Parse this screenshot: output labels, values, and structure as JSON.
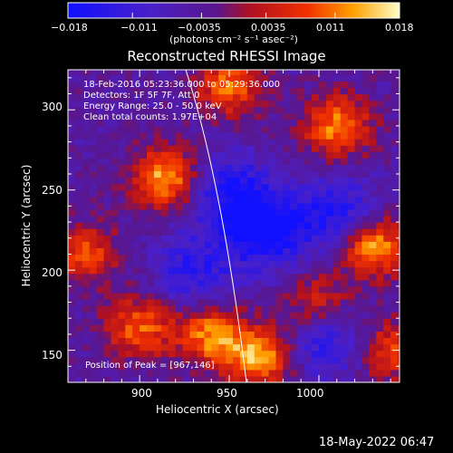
{
  "colorbar": {
    "ticks": [
      "−0.018",
      "−0.011",
      "−0.0035",
      "0.0035",
      "0.011",
      "0.018"
    ],
    "units_label": "(photons cm⁻² s⁻¹ asec⁻²)"
  },
  "plot": {
    "title": "Reconstructed RHESSI Image",
    "xlabel": "Heliocentric X (arcsec)",
    "ylabel": "Heliocentric Y (arcsec)",
    "xticks": [
      "900",
      "950",
      "1000"
    ],
    "yticks": [
      "300",
      "250",
      "200",
      "150"
    ],
    "info_lines": [
      "18-Feb-2016 05:23:36.000 to 05:29:36.000",
      "Detectors: 1F 5F 7F, Att 0",
      "Energy Range: 25.0 - 50.0 keV",
      "Clean     total counts: 1.97E+04"
    ],
    "peak_text": "Position of Peak = [967,146]"
  },
  "footer": {
    "timestamp": "18-May-2022 06:47"
  },
  "colors": {
    "background": "#000000",
    "text": "#ffffff"
  },
  "chart_data": {
    "type": "heatmap",
    "title": "Reconstructed RHESSI Image",
    "xlabel": "Heliocentric X (arcsec)",
    "ylabel": "Heliocentric Y (arcsec)",
    "xlim": [
      860,
      1045
    ],
    "ylim": [
      130,
      325
    ],
    "colorscale_range": [
      -0.018,
      0.018
    ],
    "peak_position": [
      967,
      146
    ],
    "peaks": [
      {
        "x": 915,
        "y": 258,
        "value": 0.018
      },
      {
        "x": 950,
        "y": 315,
        "value": 0.014
      },
      {
        "x": 1010,
        "y": 290,
        "value": 0.016
      },
      {
        "x": 1030,
        "y": 215,
        "value": 0.018
      },
      {
        "x": 870,
        "y": 210,
        "value": 0.012
      },
      {
        "x": 900,
        "y": 165,
        "value": 0.014
      },
      {
        "x": 940,
        "y": 160,
        "value": 0.016
      },
      {
        "x": 967,
        "y": 146,
        "value": 0.018
      },
      {
        "x": 1000,
        "y": 180,
        "value": 0.01
      },
      {
        "x": 1040,
        "y": 150,
        "value": 0.012
      }
    ],
    "troughs": [
      {
        "x": 950,
        "y": 250,
        "value": -0.012
      },
      {
        "x": 970,
        "y": 225,
        "value": -0.016
      },
      {
        "x": 1010,
        "y": 235,
        "value": -0.012
      },
      {
        "x": 930,
        "y": 200,
        "value": -0.01
      },
      {
        "x": 1005,
        "y": 155,
        "value": -0.01
      }
    ]
  }
}
